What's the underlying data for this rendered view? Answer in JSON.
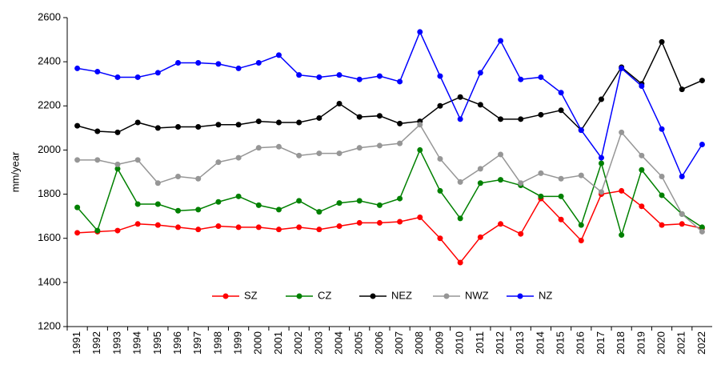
{
  "chart_data": {
    "type": "line",
    "y_label": "mm/year",
    "categories": [
      "1991",
      "1992",
      "1993",
      "1994",
      "1995",
      "1996",
      "1997",
      "1998",
      "1999",
      "2000",
      "2001",
      "2002",
      "2003",
      "2004",
      "2005",
      "2006",
      "2007",
      "2008",
      "2009",
      "2010",
      "2011",
      "2012",
      "2013",
      "2014",
      "2015",
      "2016",
      "2017",
      "2018",
      "2019",
      "2020",
      "2021",
      "2022"
    ],
    "ylim": [
      1200,
      2600
    ],
    "yticks": [
      1200,
      1400,
      1600,
      1800,
      2000,
      2200,
      2400,
      2600
    ],
    "legend": "bottom",
    "series": [
      {
        "name": "SZ",
        "color": "#ff0000",
        "values": [
          1625,
          1630,
          1635,
          1665,
          1660,
          1650,
          1640,
          1655,
          1650,
          1650,
          1640,
          1650,
          1640,
          1655,
          1670,
          1670,
          1675,
          1695,
          1600,
          1490,
          1605,
          1665,
          1620,
          1780,
          1685,
          1590,
          1800,
          1815,
          1745,
          1660,
          1665,
          1645
        ]
      },
      {
        "name": "CZ",
        "color": "#008000",
        "values": [
          1740,
          1635,
          1915,
          1755,
          1755,
          1725,
          1730,
          1765,
          1790,
          1750,
          1730,
          1770,
          1720,
          1760,
          1770,
          1750,
          1780,
          2000,
          1815,
          1690,
          1850,
          1865,
          1840,
          1790,
          1790,
          1660,
          1940,
          1615,
          1910,
          1795,
          1710,
          1650
        ]
      },
      {
        "name": "NEZ",
        "color": "#000000",
        "values": [
          2110,
          2085,
          2080,
          2125,
          2100,
          2105,
          2105,
          2115,
          2115,
          2130,
          2125,
          2125,
          2145,
          2210,
          2150,
          2155,
          2120,
          2130,
          2200,
          2240,
          2205,
          2140,
          2140,
          2160,
          2180,
          2090,
          2230,
          2375,
          2300,
          2490,
          2275,
          2315
        ]
      },
      {
        "name": "NWZ",
        "color": "#969696",
        "values": [
          1955,
          1955,
          1935,
          1955,
          1850,
          1880,
          1870,
          1945,
          1965,
          2010,
          2015,
          1975,
          1985,
          1985,
          2010,
          2020,
          2030,
          2115,
          1960,
          1855,
          1915,
          1980,
          1850,
          1895,
          1870,
          1885,
          1810,
          2080,
          1975,
          1880,
          1710,
          1630
        ]
      },
      {
        "name": "NZ",
        "color": "#0000ff",
        "values": [
          2370,
          2355,
          2330,
          2330,
          2350,
          2395,
          2395,
          2390,
          2370,
          2395,
          2430,
          2340,
          2330,
          2340,
          2320,
          2335,
          2310,
          2535,
          2335,
          2140,
          2350,
          2495,
          2320,
          2330,
          2260,
          2090,
          1965,
          2370,
          2290,
          2095,
          1880,
          2025
        ]
      }
    ]
  }
}
